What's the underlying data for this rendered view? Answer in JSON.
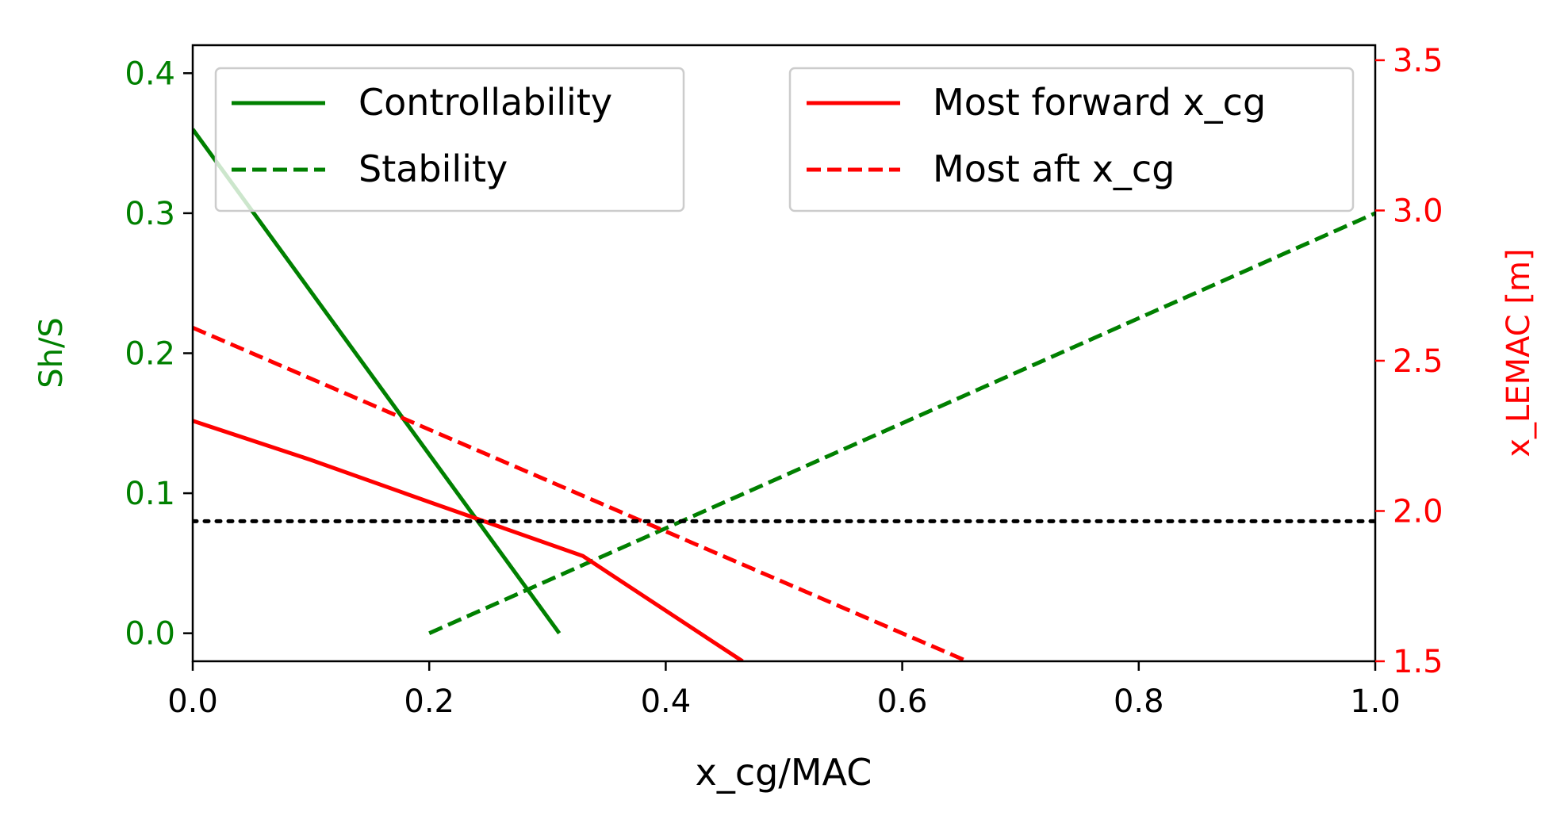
{
  "chart_data": {
    "type": "line",
    "title": "",
    "xlabel": "x_cg/MAC",
    "ylabel_left": "Sh/S",
    "ylabel_right": "x_LEMAC [m]",
    "xlim": [
      0.0,
      1.0
    ],
    "ylim_left": [
      -0.02,
      0.42
    ],
    "ylim_right": [
      1.5,
      3.55
    ],
    "xticks": [
      "0.0",
      "0.2",
      "0.4",
      "0.6",
      "0.8",
      "1.0"
    ],
    "yticks_left": [
      "0.0",
      "0.1",
      "0.2",
      "0.3",
      "0.4"
    ],
    "yticks_right": [
      "1.5",
      "2.0",
      "2.5",
      "3.0",
      "3.5"
    ],
    "colors": {
      "left_axis": "#008000",
      "right_axis": "#ff0000",
      "reference": "#000000"
    },
    "series": [
      {
        "name": "Controllability",
        "axis": "left",
        "color": "#008000",
        "dash": "solid",
        "x": [
          0.0,
          0.31
        ],
        "y": [
          0.36,
          0.0
        ]
      },
      {
        "name": "Stability",
        "axis": "left",
        "color": "#008000",
        "dash": "dashed",
        "x": [
          0.2,
          1.0
        ],
        "y": [
          0.0,
          0.3
        ]
      },
      {
        "name": "Most forward x_cg",
        "axis": "right",
        "color": "#ff0000",
        "dash": "solid",
        "x": [
          0.0,
          0.1,
          0.2,
          0.33,
          0.465
        ],
        "y": [
          2.3,
          2.17,
          2.03,
          1.85,
          1.5
        ]
      },
      {
        "name": "Most aft x_cg",
        "axis": "right",
        "color": "#ff0000",
        "dash": "dashed",
        "x": [
          0.0,
          0.655
        ],
        "y": [
          2.61,
          1.5
        ]
      },
      {
        "axis": "left",
        "color": "#000000",
        "dash": "dotted",
        "x": [
          0.0,
          1.0
        ],
        "y": [
          0.08,
          0.08
        ]
      }
    ],
    "legend_left": [
      "Controllability",
      "Stability"
    ],
    "legend_right": [
      "Most forward x_cg",
      "Most aft x_cg"
    ],
    "legend_placement": [
      "top-left",
      "top-right"
    ],
    "grid": false
  }
}
